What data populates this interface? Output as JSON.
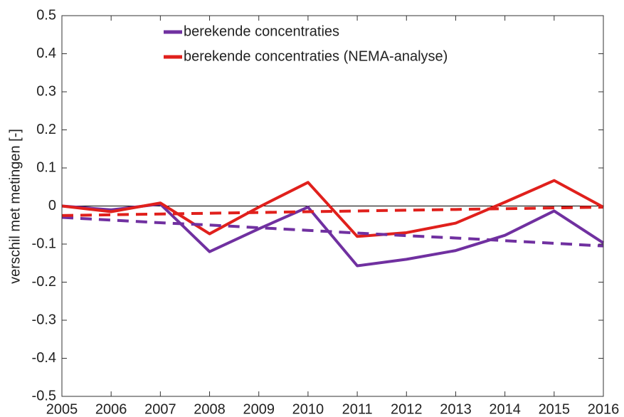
{
  "chart_data": {
    "type": "line",
    "y_label": "verschil met metingen [-]",
    "x": [
      2005,
      2006,
      2007,
      2008,
      2009,
      2010,
      2011,
      2012,
      2013,
      2014,
      2015,
      2016
    ],
    "series": [
      {
        "name": "berekende concentraties",
        "color": "#7030a0",
        "dash": false,
        "values": [
          0,
          -0.01,
          0.005,
          -0.12,
          -0.06,
          -0.003,
          -0.157,
          -0.14,
          -0.117,
          -0.077,
          -0.013,
          -0.097
        ]
      },
      {
        "name": "berekende concentraties (NEMA-analyse)",
        "color": "#e0201c",
        "dash": false,
        "values": [
          0,
          -0.015,
          0.008,
          -0.073,
          -0.003,
          0.062,
          -0.08,
          -0.07,
          -0.045,
          0.01,
          0.067,
          -0.003
        ]
      },
      {
        "color": "#7030a0",
        "dash": true,
        "values": [
          -0.03,
          -0.037,
          -0.044,
          -0.05,
          -0.057,
          -0.064,
          -0.071,
          -0.078,
          -0.084,
          -0.091,
          -0.098,
          -0.105
        ]
      },
      {
        "color": "#e0201c",
        "dash": true,
        "values": [
          -0.025,
          -0.023,
          -0.021,
          -0.019,
          -0.017,
          -0.015,
          -0.013,
          -0.011,
          -0.009,
          -0.007,
          -0.005,
          -0.003
        ]
      }
    ],
    "xlim": [
      2005,
      2016
    ],
    "xticks": [
      2005,
      2006,
      2007,
      2008,
      2009,
      2010,
      2011,
      2012,
      2013,
      2014,
      2015,
      2016
    ],
    "ylim": [
      -0.5,
      0.5
    ],
    "yticks": [
      -0.5,
      -0.4,
      -0.3,
      -0.2,
      -0.1,
      0,
      0.1,
      0.2,
      0.3,
      0.4,
      0.5
    ],
    "grid": false,
    "legend": "top"
  }
}
